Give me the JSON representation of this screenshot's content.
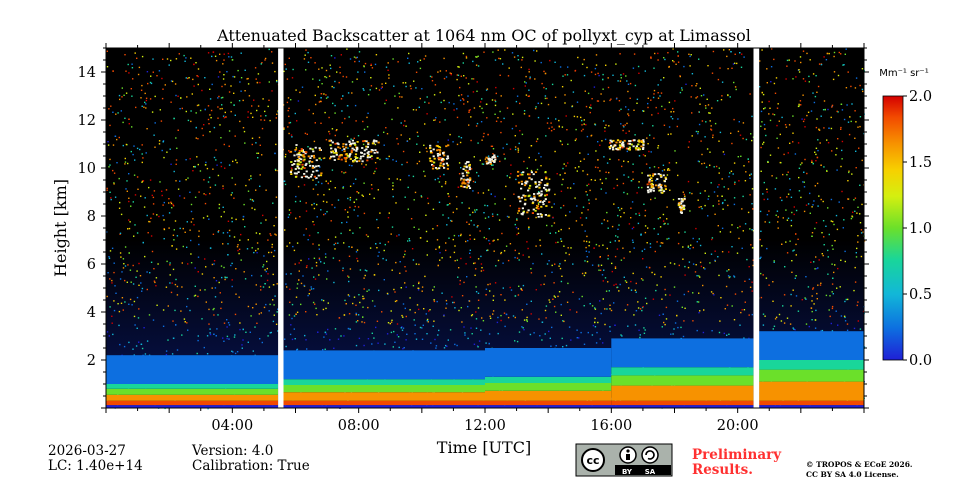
{
  "chart_data": {
    "type": "heatmap",
    "title": "Attenuated Backscatter at 1064 nm OC of pollyxt_cyp at Limassol",
    "xlabel": "Time [UTC]",
    "ylabel": "Height [km]",
    "xlim_hours": [
      0,
      24
    ],
    "ylim_km": [
      0,
      15
    ],
    "x_ticks": [
      {
        "value": 4,
        "label": "04:00"
      },
      {
        "value": 8,
        "label": "08:00"
      },
      {
        "value": 12,
        "label": "12:00"
      },
      {
        "value": 16,
        "label": "16:00"
      },
      {
        "value": 20,
        "label": "20:00"
      }
    ],
    "y_ticks": [
      {
        "value": 2,
        "label": "2"
      },
      {
        "value": 4,
        "label": "4"
      },
      {
        "value": 6,
        "label": "6"
      },
      {
        "value": 8,
        "label": "8"
      },
      {
        "value": 10,
        "label": "10"
      },
      {
        "value": 12,
        "label": "12"
      },
      {
        "value": 14,
        "label": "14"
      }
    ],
    "colorbar": {
      "unit": "Mm⁻¹ sr⁻¹",
      "range": [
        0.0,
        2.0
      ],
      "ticks": [
        {
          "value": 0.0,
          "label": "0.0"
        },
        {
          "value": 0.5,
          "label": "0.5"
        },
        {
          "value": 1.0,
          "label": "1.0"
        },
        {
          "value": 1.5,
          "label": "1.5"
        },
        {
          "value": 2.0,
          "label": "2.0"
        }
      ],
      "colormap": [
        "#1f1fd6",
        "#0d6fe0",
        "#12b7d8",
        "#19d69a",
        "#6be02a",
        "#d4ef10",
        "#f7d000",
        "#f79200",
        "#f24a00",
        "#d40000"
      ]
    },
    "data_gaps_hours": [
      [
        5.45,
        5.62
      ],
      [
        20.5,
        20.68
      ]
    ],
    "boundary_layer": {
      "description_segments": [
        {
          "t0": 0.0,
          "t1": 5.45,
          "top_km": 1.0
        },
        {
          "t0": 5.62,
          "t1": 12.0,
          "top_km": 1.2
        },
        {
          "t0": 12.0,
          "t1": 16.0,
          "top_km": 1.3
        },
        {
          "t0": 16.0,
          "t1": 20.5,
          "top_km": 1.7
        },
        {
          "t0": 20.68,
          "t1": 24.0,
          "top_km": 2.0
        }
      ]
    },
    "clouds": [
      {
        "t0": 5.8,
        "t1": 6.8,
        "h0_km": 9.6,
        "h1_km": 11.0
      },
      {
        "t0": 7.0,
        "t1": 8.6,
        "h0_km": 10.3,
        "h1_km": 11.2
      },
      {
        "t0": 10.2,
        "t1": 10.8,
        "h0_km": 10.0,
        "h1_km": 11.0
      },
      {
        "t0": 11.2,
        "t1": 11.5,
        "h0_km": 9.2,
        "h1_km": 10.3
      },
      {
        "t0": 12.0,
        "t1": 12.3,
        "h0_km": 10.2,
        "h1_km": 10.6
      },
      {
        "t0": 13.0,
        "t1": 14.0,
        "h0_km": 8.0,
        "h1_km": 9.9
      },
      {
        "t0": 15.9,
        "t1": 17.0,
        "h0_km": 10.8,
        "h1_km": 11.2
      },
      {
        "t0": 17.1,
        "t1": 17.7,
        "h0_km": 9.0,
        "h1_km": 9.8
      },
      {
        "t0": 18.1,
        "t1": 18.3,
        "h0_km": 8.1,
        "h1_km": 8.8
      }
    ]
  },
  "footer": {
    "date": "2026-03-27",
    "lc": "LC: 1.40e+14",
    "version": "Version: 4.0",
    "calibration": "Calibration: True",
    "preliminary_line1": "Preliminary",
    "preliminary_line2": "Results.",
    "license_badge": {
      "cc": "cc",
      "by": "BY",
      "sa": "SA"
    },
    "copyright_line1": "© TROPOS & ECoE 2026.",
    "copyright_line2": "CC BY SA 4.0 License."
  }
}
